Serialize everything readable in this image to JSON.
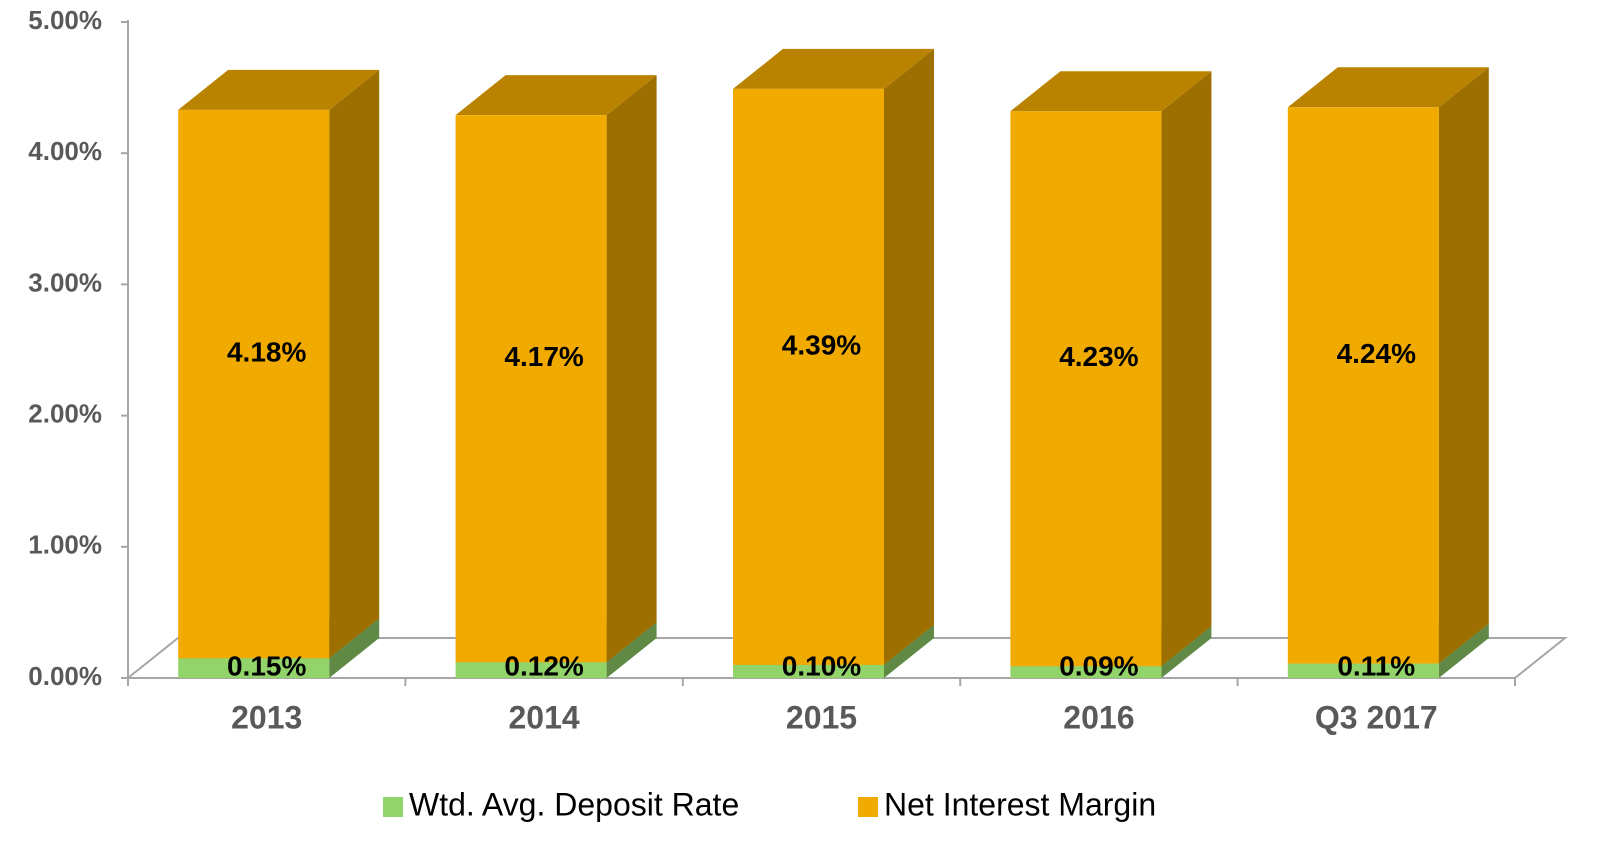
{
  "chart_data": {
    "type": "bar3d_stacked",
    "categories": [
      "2013",
      "2014",
      "2015",
      "2016",
      "Q3 2017"
    ],
    "series": [
      {
        "name": "Wtd. Avg. Deposit Rate",
        "color": "#92d36a",
        "values": [
          0.15,
          0.12,
          0.1,
          0.09,
          0.11
        ],
        "value_labels": [
          "0.15%",
          "0.12%",
          "0.10%",
          "0.09%",
          "0.11%"
        ]
      },
      {
        "name": "Net Interest Margin",
        "color": "#f0aa00",
        "values": [
          4.18,
          4.17,
          4.39,
          4.23,
          4.24
        ],
        "value_labels": [
          "4.18%",
          "4.17%",
          "4.39%",
          "4.23%",
          "4.24%"
        ]
      }
    ],
    "ylim": [
      0,
      5
    ],
    "yticks": [
      {
        "value": 0,
        "label": "0.00%"
      },
      {
        "value": 1,
        "label": "1.00%"
      },
      {
        "value": 2,
        "label": "2.00%"
      },
      {
        "value": 3,
        "label": "3.00%"
      },
      {
        "value": 4,
        "label": "4.00%"
      },
      {
        "value": 5,
        "label": "5.00%"
      }
    ],
    "legend": "bottom"
  }
}
